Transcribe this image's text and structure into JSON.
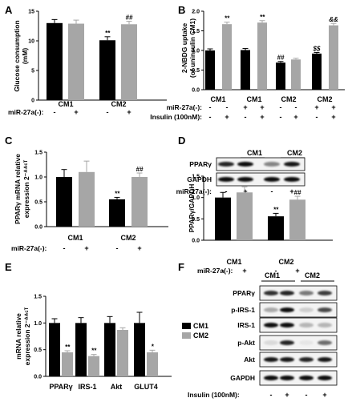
{
  "panels": {
    "A": "A",
    "B": "B",
    "C": "C",
    "D": "D",
    "E": "E",
    "F": "F"
  },
  "common": {
    "mir_label": "miR-27a(-):",
    "insulin_label": "Insulin (100nM):",
    "minus": "-",
    "plus": "+"
  },
  "colors": {
    "black": "#000000",
    "gray": "#a6a6a6"
  },
  "chart_data": [
    {
      "id": "A",
      "type": "bar",
      "ylabel": "Glucose consumption (mM)",
      "ylabel_lines": [
        "Glucose consumption",
        "(mM)"
      ],
      "ylim": [
        0,
        15
      ],
      "yticks": [
        "0",
        "5",
        "10",
        "15"
      ],
      "groups": [
        "CM1",
        "CM2"
      ],
      "row_labels": [
        "miR-27a(-):"
      ],
      "row_signs": [
        [
          "-",
          "+",
          "-",
          "+"
        ]
      ],
      "bars": [
        {
          "group": "CM1",
          "color": "black",
          "value": 13.0,
          "err": 0.6,
          "sig": ""
        },
        {
          "group": "CM1",
          "color": "gray",
          "value": 12.9,
          "err": 0.6,
          "sig": ""
        },
        {
          "group": "CM2",
          "color": "black",
          "value": 10.1,
          "err": 0.6,
          "sig": "**"
        },
        {
          "group": "CM2",
          "color": "gray",
          "value": 12.8,
          "err": 0.5,
          "sig": "##"
        }
      ]
    },
    {
      "id": "B",
      "type": "bar",
      "ylabel": "2-NBDG uptake (of uninsulin CM1)",
      "ylabel_lines": [
        "2-NBDG uptake",
        "(of uninsulin CM1)"
      ],
      "ylim": [
        0,
        2.0
      ],
      "yticks": [
        "0.0",
        "0.5",
        "1.0",
        "1.5",
        "2.0"
      ],
      "groups": [
        "CM1",
        "CM1",
        "CM2",
        "CM2"
      ],
      "row_labels": [
        "miR-27a(-):",
        "Insulin (100nM):"
      ],
      "row_signs": [
        [
          "-",
          "-",
          "+",
          "+",
          "-",
          "-",
          "+",
          "+"
        ],
        [
          "-",
          "+",
          "-",
          "+",
          "-",
          "+",
          "-",
          "+"
        ]
      ],
      "bars": [
        {
          "group": "CM1",
          "color": "black",
          "value": 1.0,
          "err": 0.04,
          "sig": ""
        },
        {
          "group": "CM1",
          "color": "gray",
          "value": 1.67,
          "err": 0.05,
          "sig": "**"
        },
        {
          "group": "CM1",
          "color": "black",
          "value": 1.01,
          "err": 0.04,
          "sig": ""
        },
        {
          "group": "CM1",
          "color": "gray",
          "value": 1.71,
          "err": 0.05,
          "sig": "**"
        },
        {
          "group": "CM2",
          "color": "black",
          "value": 0.69,
          "err": 0.03,
          "sig": "##"
        },
        {
          "group": "CM2",
          "color": "gray",
          "value": 0.77,
          "err": 0.03,
          "sig": ""
        },
        {
          "group": "CM2",
          "color": "black",
          "value": 0.92,
          "err": 0.03,
          "sig": "$$"
        },
        {
          "group": "CM2",
          "color": "gray",
          "value": 1.64,
          "err": 0.05,
          "sig": "&&"
        }
      ]
    },
    {
      "id": "C",
      "type": "bar",
      "ylabel": "PPARγ mRNA relative expression 2-ΔΔCT",
      "ylabel_lines": [
        "PPARγ mRNA relative",
        "expression 2⁻ᐞᐞᶜᵀ"
      ],
      "ylim": [
        0,
        1.5
      ],
      "yticks": [
        "0.0",
        "0.5",
        "1.0",
        "1.5"
      ],
      "groups": [
        "CM1",
        "CM2"
      ],
      "row_labels": [
        "miR-27a(-):"
      ],
      "row_signs": [
        [
          "-",
          "+",
          "-",
          "+"
        ]
      ],
      "bars": [
        {
          "group": "CM1",
          "color": "black",
          "value": 1.0,
          "err": 0.15,
          "sig": ""
        },
        {
          "group": "CM1",
          "color": "gray",
          "value": 1.1,
          "err": 0.22,
          "sig": ""
        },
        {
          "group": "CM2",
          "color": "black",
          "value": 0.55,
          "err": 0.04,
          "sig": "**"
        },
        {
          "group": "CM2",
          "color": "gray",
          "value": 1.0,
          "err": 0.08,
          "sig": "##"
        }
      ]
    },
    {
      "id": "D",
      "type": "bar",
      "ylabel": "PPARγ/GAPDH",
      "ylabel_lines": [
        "PPARγ/GAPDH"
      ],
      "ylim": [
        0,
        1.5
      ],
      "yticks": [
        "0.0",
        "0.5",
        "1.0",
        "1.5"
      ],
      "groups": [
        "CM1",
        "CM2"
      ],
      "row_labels": [
        "miR-27a(-):"
      ],
      "row_signs": [
        [
          "-",
          "+",
          "-",
          "+"
        ]
      ],
      "bars": [
        {
          "group": "CM1",
          "color": "black",
          "value": 1.0,
          "err": 0.12,
          "sig": ""
        },
        {
          "group": "CM1",
          "color": "gray",
          "value": 1.12,
          "err": 0.13,
          "sig": ""
        },
        {
          "group": "CM2",
          "color": "black",
          "value": 0.56,
          "err": 0.07,
          "sig": "**"
        },
        {
          "group": "CM2",
          "color": "gray",
          "value": 0.95,
          "err": 0.08,
          "sig": "##"
        }
      ],
      "blot": {
        "groups": [
          "CM1",
          "CM2"
        ],
        "rows": [
          "PPARγ",
          "GAPDH"
        ],
        "row_label": "miR-27a(-):",
        "signs": [
          "-",
          "+",
          "-",
          "+"
        ]
      }
    },
    {
      "id": "E",
      "type": "bar",
      "ylabel": "mRNA relative expression 2-ΔΔCT",
      "ylabel_lines": [
        "mRNA relative",
        "expression 2⁻ᐞᐞᶜᵀ"
      ],
      "ylim": [
        0,
        1.5
      ],
      "yticks": [
        "0.0",
        "0.5",
        "1.0",
        "1.5"
      ],
      "categories": [
        "PPARγ",
        "IRS-1",
        "Akt",
        "GLUT4"
      ],
      "legend": [
        {
          "label": "CM1",
          "color": "black"
        },
        {
          "label": "CM2",
          "color": "gray"
        }
      ],
      "series": [
        {
          "name": "CM1",
          "color": "black",
          "values": [
            1.0,
            1.0,
            1.0,
            1.0
          ],
          "err": [
            0.08,
            0.1,
            0.12,
            0.2
          ],
          "sig": [
            "",
            "",
            "",
            ""
          ]
        },
        {
          "name": "CM2",
          "color": "gray",
          "values": [
            0.45,
            0.38,
            0.87,
            0.45
          ],
          "err": [
            0.03,
            0.03,
            0.04,
            0.04
          ],
          "sig": [
            "**",
            "**",
            "",
            "*"
          ]
        }
      ]
    }
  ],
  "blot_F": {
    "groups": [
      "CM1",
      "CM2"
    ],
    "rows": [
      "PPARγ",
      "p-IRS-1",
      "IRS-1",
      "p-Akt",
      "Akt",
      "GAPDH"
    ],
    "row_label": "Insulin (100nM):",
    "signs": [
      "-",
      "+",
      "-",
      "+"
    ]
  }
}
